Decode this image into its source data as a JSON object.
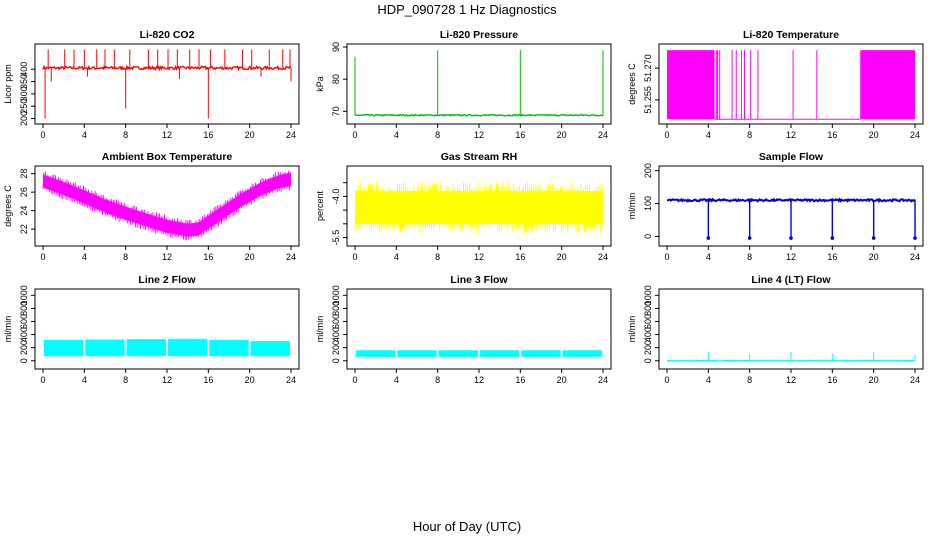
{
  "figure": {
    "title": "HDP_090728  1 Hz Diagnostics",
    "xlabel": "Hour of Day (UTC)"
  },
  "chart_data": [
    {
      "type": "line",
      "title": "Li-820 CO2",
      "ylabel": "Licor ppm",
      "color": "#ff0000",
      "xlim": [
        0,
        24
      ],
      "ylim": [
        190,
        490
      ],
      "xticks": [
        0,
        4,
        8,
        12,
        16,
        20,
        24
      ],
      "xtick_labels": [
        "0",
        "4",
        "8",
        "12",
        "16",
        "20",
        "24"
      ],
      "yticks": [
        200,
        250,
        300,
        350,
        400
      ],
      "ytick_labels": [
        "200",
        "250",
        "300",
        "350",
        "400"
      ],
      "baseline": 405,
      "noise": 6,
      "spikes": [
        [
          0.2,
          200
        ],
        [
          0.5,
          480
        ],
        [
          0.8,
          350
        ],
        [
          2.1,
          480
        ],
        [
          3.0,
          480
        ],
        [
          4.0,
          480
        ],
        [
          4.3,
          370
        ],
        [
          5.2,
          480
        ],
        [
          6.0,
          480
        ],
        [
          6.9,
          480
        ],
        [
          8.0,
          240
        ],
        [
          8.4,
          480
        ],
        [
          10.2,
          480
        ],
        [
          11.1,
          480
        ],
        [
          12.1,
          480
        ],
        [
          13.0,
          480
        ],
        [
          13.2,
          360
        ],
        [
          14.2,
          480
        ],
        [
          15.1,
          480
        ],
        [
          16.0,
          200
        ],
        [
          16.2,
          480
        ],
        [
          17.6,
          480
        ],
        [
          19.3,
          480
        ],
        [
          20.2,
          480
        ],
        [
          21.1,
          370
        ],
        [
          21.9,
          480
        ],
        [
          23.2,
          480
        ],
        [
          23.9,
          480
        ],
        [
          24.0,
          350
        ]
      ]
    },
    {
      "type": "line",
      "title": "Li-820 Pressure",
      "ylabel": "kPa",
      "color": "#00bb00",
      "xlim": [
        0,
        24
      ],
      "ylim": [
        67,
        90
      ],
      "xticks": [
        0,
        4,
        8,
        12,
        16,
        20,
        24
      ],
      "xtick_labels": [
        "0",
        "4",
        "8",
        "12",
        "16",
        "20",
        "24"
      ],
      "yticks": [
        70,
        80,
        90
      ],
      "ytick_labels": [
        "70",
        "80",
        "90"
      ],
      "baseline": 68.8,
      "noise": 0.2,
      "spikes": [
        [
          0.0,
          87
        ],
        [
          8.0,
          89
        ],
        [
          16.0,
          89
        ],
        [
          24.0,
          89
        ]
      ]
    },
    {
      "type": "line",
      "title": "Li-820 Temperature",
      "ylabel": "degrees C",
      "color": "#ff00ff",
      "xlim": [
        0,
        24
      ],
      "ylim": [
        51.245,
        51.28
      ],
      "xticks": [
        0,
        4,
        8,
        12,
        16,
        20,
        24
      ],
      "xtick_labels": [
        "0",
        "4",
        "8",
        "12",
        "16",
        "20",
        "24"
      ],
      "yticks": [
        51.255,
        51.27
      ],
      "ytick_labels": [
        "51.255",
        "51.270"
      ],
      "dense_segments": [
        [
          0,
          4.6
        ],
        [
          18.7,
          24
        ]
      ],
      "sparse_lines": [
        4.8,
        4.9,
        5.1,
        6.3,
        6.7,
        7.2,
        7.5,
        8.1,
        8.8,
        12.2,
        14.5
      ]
    },
    {
      "type": "line",
      "title": "Ambient Box Temperature",
      "ylabel": "degrees C",
      "color": "#ff00ff",
      "xlim": [
        0,
        24
      ],
      "ylim": [
        20.5,
        28.5
      ],
      "xticks": [
        0,
        4,
        8,
        12,
        16,
        20,
        24
      ],
      "xtick_labels": [
        "0",
        "4",
        "8",
        "12",
        "16",
        "20",
        "24"
      ],
      "yticks": [
        22,
        24,
        26,
        28
      ],
      "ytick_labels": [
        "22",
        "24",
        "26",
        "28"
      ],
      "curve": [
        [
          0,
          27.2
        ],
        [
          2,
          26.4
        ],
        [
          4,
          25.5
        ],
        [
          6,
          24.5
        ],
        [
          8,
          23.7
        ],
        [
          10,
          23.0
        ],
        [
          12,
          22.3
        ],
        [
          14,
          21.9
        ],
        [
          15,
          22.0
        ],
        [
          17,
          23.5
        ],
        [
          19,
          25.0
        ],
        [
          21,
          26.3
        ],
        [
          23,
          27.2
        ],
        [
          24,
          27.4
        ]
      ],
      "band": 1.4
    },
    {
      "type": "line",
      "title": "Gas Stream RH",
      "ylabel": "percent",
      "color": "#ffff00",
      "xlim": [
        0,
        24
      ],
      "ylim": [
        -5.7,
        -3.0
      ],
      "xticks": [
        0,
        4,
        8,
        12,
        16,
        20,
        24
      ],
      "xtick_labels": [
        "0",
        "4",
        "8",
        "12",
        "16",
        "20",
        "24"
      ],
      "yticks": [
        -5.5,
        -5.0,
        -4.5,
        -4.0,
        -3.5
      ],
      "ytick_labels": [
        "-5.5",
        "",
        "",
        "-4.0",
        ""
      ],
      "center": -4.4,
      "band": 1.2
    },
    {
      "type": "line",
      "title": "Sample Flow",
      "ylabel": "ml/min",
      "color": "#0000dd",
      "xlim": [
        0,
        24
      ],
      "ylim": [
        -20,
        205
      ],
      "xticks": [
        0,
        4,
        8,
        12,
        16,
        20,
        24
      ],
      "xtick_labels": [
        "0",
        "4",
        "8",
        "12",
        "16",
        "20",
        "24"
      ],
      "yticks": [
        0,
        100,
        200
      ],
      "ytick_labels": [
        "0",
        "100",
        "200"
      ],
      "baseline": 110,
      "noise": 3,
      "dips": [
        4.0,
        8.0,
        12.0,
        16.0,
        20.0,
        24.0
      ],
      "dip_value": -5
    },
    {
      "type": "line",
      "title": "Line 2 Flow",
      "ylabel": "ml/min",
      "color": "#00ffff",
      "xlim": [
        0,
        24
      ],
      "ylim": [
        -80,
        1050
      ],
      "xticks": [
        0,
        4,
        8,
        12,
        16,
        20,
        24
      ],
      "xtick_labels": [
        "0",
        "4",
        "8",
        "12",
        "16",
        "20",
        "24"
      ],
      "yticks": [
        0,
        200,
        400,
        600,
        800,
        1000
      ],
      "ytick_labels": [
        "0",
        "200",
        "400",
        "600",
        "800",
        "1000"
      ],
      "bands": [
        [
          0,
          4,
          70,
          320
        ],
        [
          4,
          8,
          70,
          325
        ],
        [
          8,
          12,
          70,
          330
        ],
        [
          12,
          16,
          70,
          335
        ],
        [
          16,
          20,
          70,
          320
        ],
        [
          20,
          24,
          70,
          300
        ]
      ]
    },
    {
      "type": "line",
      "title": "Line 3 Flow",
      "ylabel": "ml/min",
      "color": "#00ffff",
      "xlim": [
        0,
        24
      ],
      "ylim": [
        -80,
        1050
      ],
      "xticks": [
        0,
        4,
        8,
        12,
        16,
        20,
        24
      ],
      "xtick_labels": [
        "0",
        "4",
        "8",
        "12",
        "16",
        "20",
        "24"
      ],
      "yticks": [
        0,
        200,
        400,
        600,
        800,
        1000
      ],
      "ytick_labels": [
        "0",
        "200",
        "400",
        "600",
        "800",
        "1000"
      ],
      "bands": [
        [
          0,
          4,
          60,
          160
        ],
        [
          4,
          8,
          60,
          160
        ],
        [
          8,
          12,
          60,
          160
        ],
        [
          12,
          16,
          60,
          160
        ],
        [
          16,
          20,
          60,
          160
        ],
        [
          20,
          24,
          60,
          160
        ]
      ]
    },
    {
      "type": "line",
      "title": "Line 4 (LT) Flow",
      "ylabel": "ml/min",
      "color": "#00ffff",
      "xlim": [
        0,
        24
      ],
      "ylim": [
        -80,
        1050
      ],
      "xticks": [
        0,
        4,
        8,
        12,
        16,
        20,
        24
      ],
      "xtick_labels": [
        "0",
        "4",
        "8",
        "12",
        "16",
        "20",
        "24"
      ],
      "yticks": [
        0,
        200,
        400,
        600,
        800,
        1000
      ],
      "ytick_labels": [
        "0",
        "200",
        "400",
        "600",
        "800",
        "1000"
      ],
      "baseline": 0,
      "noise": 4,
      "spikes": [
        [
          4.0,
          130
        ],
        [
          8.0,
          110
        ],
        [
          12.0,
          130
        ],
        [
          16.0,
          110
        ],
        [
          20.0,
          130
        ],
        [
          24.0,
          90
        ]
      ]
    }
  ]
}
